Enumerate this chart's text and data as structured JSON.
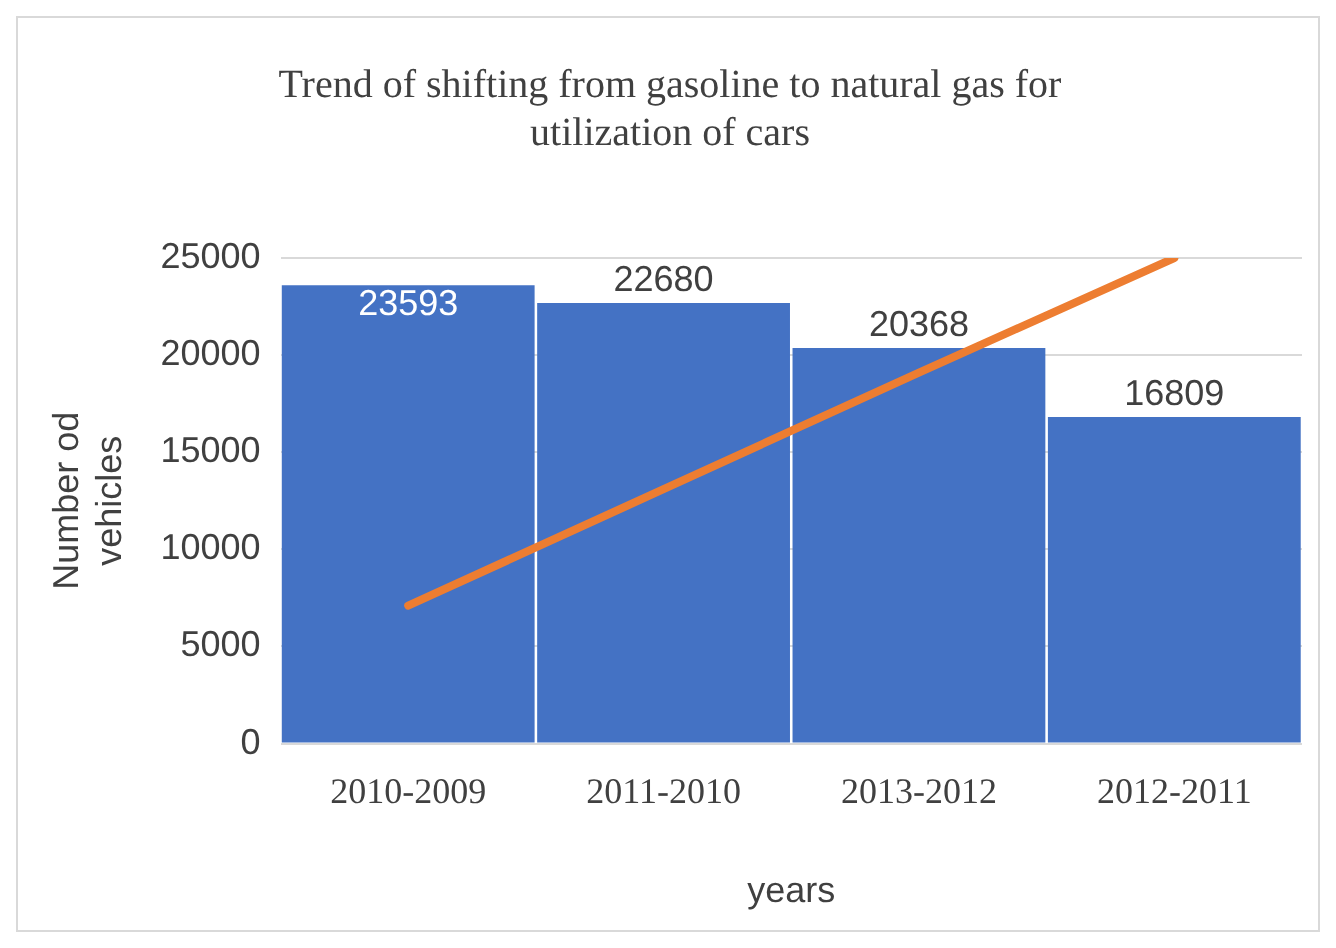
{
  "chart_data": {
    "type": "bar",
    "title": "Trend of shifting from gasoline to natural gas for utilization of cars",
    "xlabel": "years",
    "ylabel": "Number od vehicles",
    "categories": [
      "2010-2009",
      "2011-2010",
      "2013-2012",
      "2012-2011"
    ],
    "series": [
      {
        "color": "#4472c4",
        "values": [
          23593,
          22680,
          20368,
          16809
        ],
        "value_labels": [
          "23593",
          "22680",
          "20368",
          "16809"
        ]
      },
      {
        "type": "line",
        "color": "#ed7d31",
        "values": [
          7100,
          13100,
          19100,
          25000
        ],
        "marker": "none"
      }
    ],
    "ylim": [
      0,
      25000
    ],
    "yticks": [
      0,
      5000,
      10000,
      15000,
      20000,
      25000
    ],
    "grid": "y",
    "legend": false
  }
}
